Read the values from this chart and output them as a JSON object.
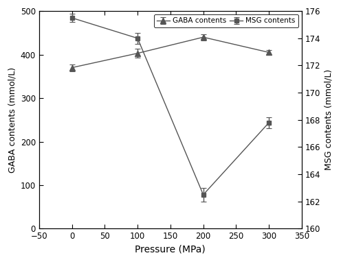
{
  "pressure": [
    0,
    100,
    200,
    300
  ],
  "gaba_values": [
    370,
    403,
    440,
    405
  ],
  "gaba_errors": [
    8,
    10,
    7,
    6
  ],
  "msg_values": [
    175.5,
    174.0,
    162.5,
    167.8
  ],
  "msg_errors": [
    0.3,
    0.4,
    0.5,
    0.4
  ],
  "line_color": "#555555",
  "xlabel": "Pressure (MPa)",
  "ylabel_left": "GABA contents (mmol/L)",
  "ylabel_right": "MSG contents (mmol/L)",
  "legend_gaba": "GABA contents",
  "legend_msg": "MSG contents",
  "xlim": [
    -50,
    350
  ],
  "ylim_left": [
    0,
    500
  ],
  "ylim_right": [
    160,
    176
  ],
  "xticks": [
    -50,
    0,
    50,
    100,
    150,
    200,
    250,
    300,
    350
  ],
  "yticks_left": [
    0,
    100,
    200,
    300,
    400,
    500
  ],
  "yticks_right": [
    160,
    162,
    164,
    166,
    168,
    170,
    172,
    174,
    176
  ],
  "bg_color": "#f0f0f0",
  "fig_color": "white"
}
